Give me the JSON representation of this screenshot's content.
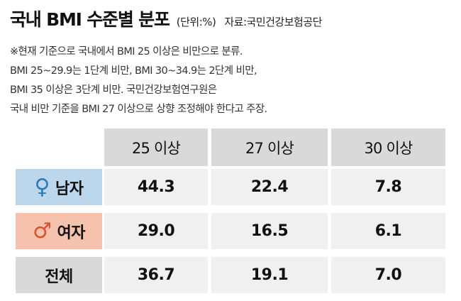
{
  "header": {
    "title": "국내 BMI 수준별 분포",
    "unit": "(단위:%)",
    "source": "자료:국민건강보험공단"
  },
  "note_lines": [
    "※현재 기준으로 국내에서 BMI 25 이상은 비만으로 분류.",
    "BMI 25~29.9는 1단계 비만, BMI 30~34.9는 2단계 비만,",
    "BMI 35 이상은 3단계 비만. 국민건강보험연구원은",
    "국내 비만 기준을 BMI 27 이상으로 상향 조정해야 한다고 주장."
  ],
  "colors": {
    "female_bg": "#bcd7ec",
    "female_icon": "#2b7bb9",
    "male_bg": "#f5c2ae",
    "male_icon": "#d9532f",
    "total_bg": "#d9d9d9",
    "cell_bg": "#f0f0f0"
  },
  "table": {
    "columns": [
      "25 이상",
      "27 이상",
      "30 이상"
    ],
    "rows": [
      {
        "label": "남자",
        "icon": "female-symbol-icon",
        "symbol": "♀",
        "values": [
          "44.3",
          "22.4",
          "7.8"
        ]
      },
      {
        "label": "여자",
        "icon": "male-symbol-icon",
        "symbol": "♂",
        "values": [
          "29.0",
          "16.5",
          "6.1"
        ]
      },
      {
        "label": "전체",
        "icon": "",
        "symbol": "",
        "values": [
          "36.7",
          "19.1",
          "7.0"
        ]
      }
    ]
  }
}
